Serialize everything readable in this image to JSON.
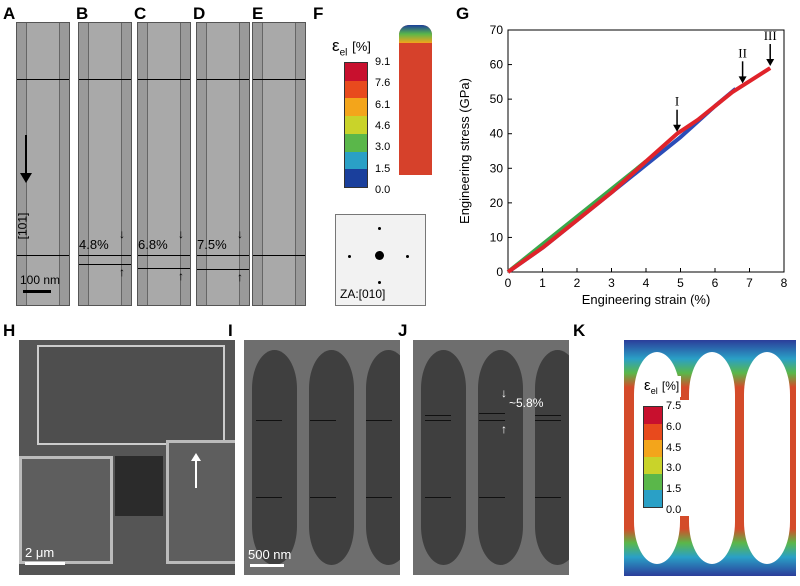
{
  "panels": {
    "A": "A",
    "B": "B",
    "C": "C",
    "D": "D",
    "E": "E",
    "F": "F",
    "G": "G",
    "H": "H",
    "I": "I",
    "J": "J",
    "K": "K"
  },
  "tem": {
    "direction_label": "[101]",
    "scale_label": "100 nm",
    "strain_B": "4.8%",
    "strain_C": "6.8%",
    "strain_D": "7.5%"
  },
  "panelF": {
    "colorbar_title": "ε",
    "colorbar_sub": "el",
    "colorbar_unit": "[%]",
    "ticks": [
      "9.1",
      "7.6",
      "6.1",
      "4.6",
      "3.0",
      "1.5",
      "0.0"
    ],
    "colors": [
      "#c8102e",
      "#e84a1d",
      "#f3a51b",
      "#c9d32a",
      "#5ab74a",
      "#2aa0c6",
      "#1a3f9c"
    ],
    "diffraction_label": "ZA:[010]"
  },
  "panelK": {
    "colorbar_title": "ε",
    "colorbar_sub": "el",
    "colorbar_unit": "[%]",
    "ticks": [
      "7.5",
      "6.0",
      "4.5",
      "3.0",
      "1.5",
      "0.0"
    ]
  },
  "panelH": {
    "scale_label": "2 μm"
  },
  "panelI": {
    "scale_label": "500 nm"
  },
  "panelJ": {
    "strain_label": "~5.8%"
  },
  "chart_data": {
    "type": "line",
    "xlabel": "Engineering strain (%)",
    "ylabel": "Engineering stress (GPa)",
    "xlim": [
      0,
      8
    ],
    "ylim": [
      0,
      70
    ],
    "xticks": [
      "0",
      "1",
      "2",
      "3",
      "4",
      "5",
      "6",
      "7",
      "8"
    ],
    "yticks": [
      "0",
      "10",
      "20",
      "30",
      "40",
      "50",
      "60",
      "70"
    ],
    "series": [
      {
        "color": "#2b4db8",
        "x": [
          0,
          1,
          2,
          3,
          4,
          5,
          6,
          6.6
        ],
        "y": [
          0,
          7,
          15,
          23,
          31,
          39,
          48,
          53
        ]
      },
      {
        "color": "#3aa84a",
        "x": [
          0,
          1,
          2,
          3,
          4
        ],
        "y": [
          0,
          8,
          16,
          24,
          32
        ]
      },
      {
        "color": "#e0232a",
        "x": [
          0,
          1,
          2,
          3,
          4,
          4.9,
          5.5,
          6.5,
          7.6
        ],
        "y": [
          0,
          7,
          15,
          23,
          32,
          40,
          44,
          52,
          59
        ]
      }
    ],
    "annotations": [
      {
        "text": "I",
        "x": 4.9,
        "y": 40
      },
      {
        "text": "II",
        "x": 6.8,
        "y": 54
      },
      {
        "text": "III",
        "x": 7.6,
        "y": 59
      }
    ]
  }
}
